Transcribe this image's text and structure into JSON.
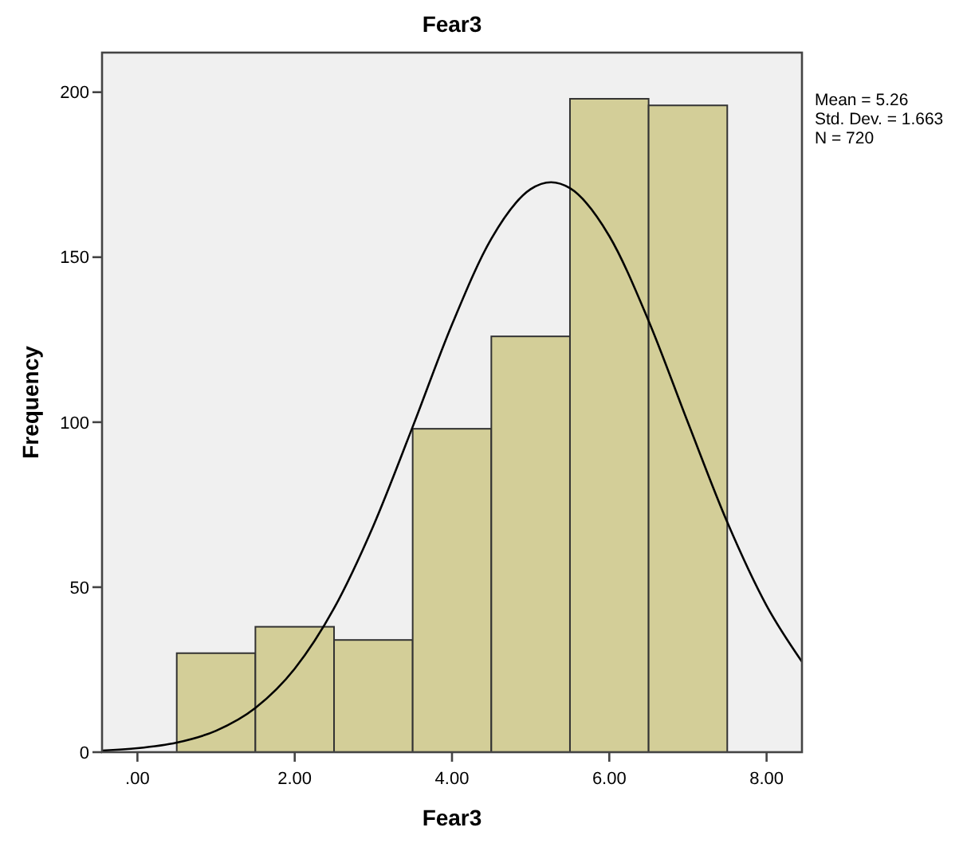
{
  "chart_data": {
    "type": "histogram",
    "title": "Fear3",
    "xlabel": "Fear3",
    "ylabel": "Frequency",
    "bins": [
      0.5,
      1.5,
      2.5,
      3.5,
      4.5,
      5.5,
      6.5,
      7.5
    ],
    "values": [
      30,
      38,
      34,
      98,
      126,
      198,
      196
    ],
    "color": "#d3ce98",
    "series": [
      {
        "type": "line",
        "color": "#000000",
        "x": [
          -0.45,
          0,
          0.5,
          1,
          1.5,
          2,
          2.5,
          3,
          3.5,
          4,
          4.5,
          5,
          5.26,
          5.5,
          6,
          6.5,
          7,
          7.5,
          8,
          8.45
        ],
        "values": [
          0.5,
          1.2,
          2.9,
          6.5,
          13.4,
          25.3,
          43.6,
          68.6,
          98.6,
          129.6,
          155.6,
          170.6,
          172.7,
          170.9,
          156.4,
          130.7,
          99.9,
          69.7,
          44.4,
          27.4
        ]
      }
    ],
    "xlim": [
      -0.45,
      8.45
    ],
    "xticks": [
      {
        "value": 0,
        "label": ".00"
      },
      {
        "value": 2,
        "label": "2.00"
      },
      {
        "value": 4,
        "label": "4.00"
      },
      {
        "value": 6,
        "label": "6.00"
      },
      {
        "value": 8,
        "label": "8.00"
      }
    ],
    "ylim": [
      0,
      212
    ],
    "yticks": [
      0,
      50,
      100,
      150,
      200
    ],
    "grid": false,
    "marker": "none",
    "annotations": [
      "Mean = 5.26",
      "Std. Dev. = 1.663",
      "N = 720"
    ]
  }
}
